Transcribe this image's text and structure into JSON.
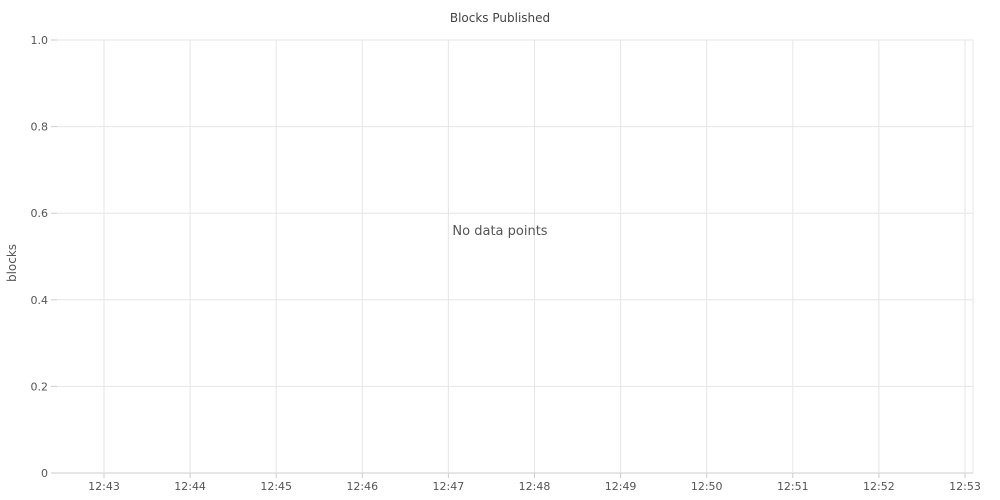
{
  "chart_data": {
    "type": "line",
    "title": "Blocks Published",
    "xlabel": "",
    "ylabel": "blocks",
    "x_ticks": [
      "12:43",
      "12:44",
      "12:45",
      "12:46",
      "12:47",
      "12:48",
      "12:49",
      "12:50",
      "12:51",
      "12:52",
      "12:53"
    ],
    "y_ticks": [
      "0",
      "0.2",
      "0.4",
      "0.6",
      "0.8",
      "1.0"
    ],
    "ylim": [
      0,
      1
    ],
    "series": [],
    "grid": true,
    "empty_message": "No data points"
  },
  "colors": {
    "grid": "#e6e6e6",
    "axis": "#cccccc",
    "tick_text": "#555555"
  }
}
